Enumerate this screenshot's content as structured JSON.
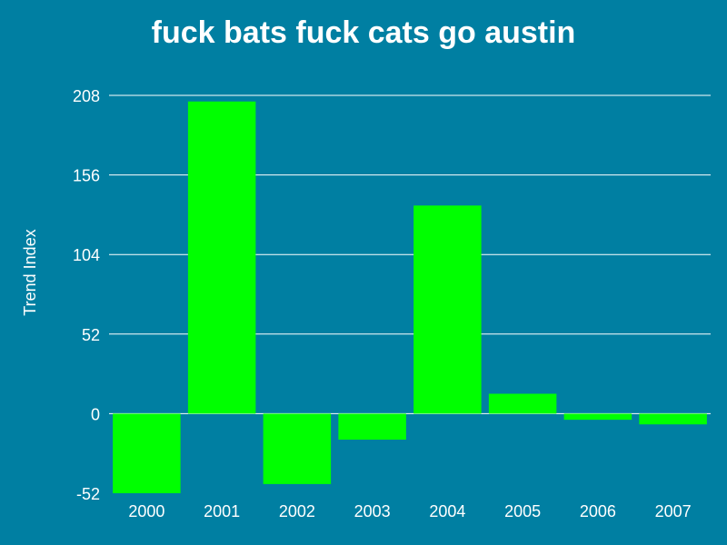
{
  "colors": {
    "background": "#007fa2",
    "bar": "#00ff00",
    "grid": "#ffffff",
    "text": "#ffffff"
  },
  "chart_data": {
    "type": "bar",
    "title": "fuck bats fuck cats go austin",
    "xlabel": "",
    "ylabel": "Trend Index",
    "categories": [
      "2000",
      "2001",
      "2002",
      "2003",
      "2004",
      "2005",
      "2006",
      "2007"
    ],
    "values": [
      -53,
      204,
      -46,
      -17,
      136,
      13,
      -4,
      -7
    ],
    "ylim": [
      -52,
      208
    ],
    "yticks": [
      -52,
      0,
      52,
      104,
      156,
      208
    ],
    "grid": true,
    "legend": "none"
  }
}
